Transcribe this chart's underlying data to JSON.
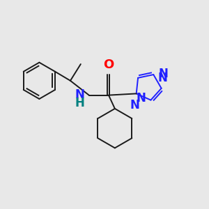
{
  "background_color": "#e8e8e8",
  "bond_color": "#1a1a1a",
  "N_color": "#2020ff",
  "O_color": "#ff0000",
  "NH_N_color": "#2020ff",
  "NH_H_color": "#008080",
  "bond_width": 1.4,
  "font_size_atoms": 12,
  "figsize": [
    3.0,
    3.0
  ],
  "dpi": 100,
  "xlim": [
    0,
    10
  ],
  "ylim": [
    0,
    10
  ]
}
